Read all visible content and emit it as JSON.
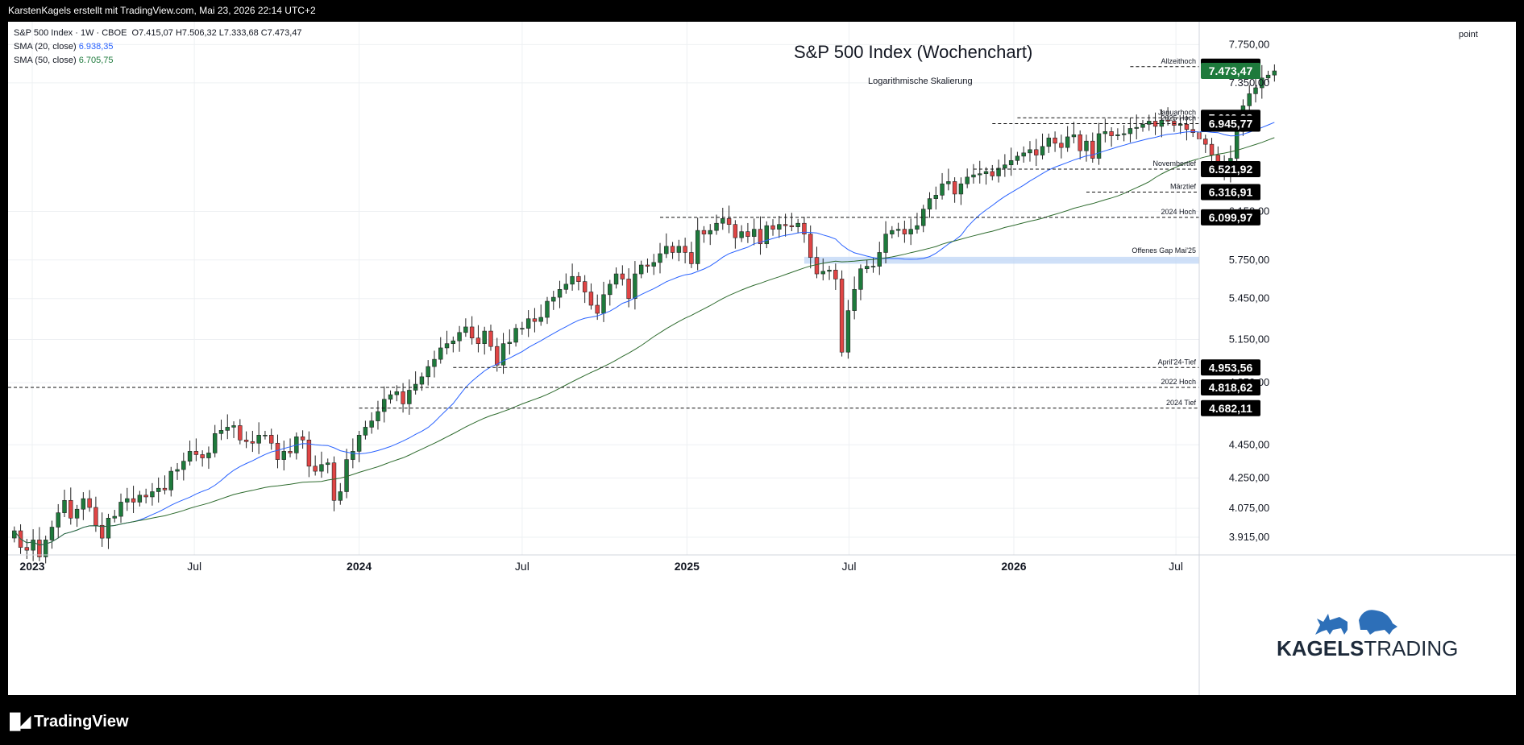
{
  "topbar": {
    "text": "KarstenKagels erstellt mit TradingView.com, Mai 23, 2026 22:14 UTC+2"
  },
  "legend": {
    "symbol_line": "S&P 500 Index · 1W · CBOE",
    "ohlc": "O7.415,07  H7.506,32  L7.333,68  C7.473,47",
    "sma20_label": "SMA (20, close)",
    "sma20_value": "6.938,35",
    "sma50_label": "SMA (50, close)",
    "sma50_value": "6.705,75"
  },
  "chart_title": "S&P 500 Index (Wochenchart)",
  "chart_subtitle": "Logarithmische Skalierung",
  "unit_label": "point",
  "footer": {
    "logo": "TradingView"
  },
  "branding": {
    "word1": "KAGELS",
    "word2": "TRADING"
  },
  "colors": {
    "up": "#1e7a3c",
    "down": "#e04545",
    "sma20": "#2962ff",
    "sma50": "#2e6b2e",
    "gap": "#bbd3f5"
  },
  "chart_data": {
    "type": "candlestick",
    "title": "S&P 500 Index (Wochenchart)",
    "subtitle": "Logarithmische Skalierung",
    "y_scale": "log",
    "x_range": [
      "2022-12-05",
      "2026-07-27"
    ],
    "y_range": [
      3820,
      8000
    ],
    "x_labels": [
      {
        "text": "2023",
        "date": "2023-01-01",
        "bold": true
      },
      {
        "text": "Jul",
        "date": "2023-07-01",
        "bold": false
      },
      {
        "text": "2024",
        "date": "2024-01-01",
        "bold": true
      },
      {
        "text": "Jul",
        "date": "2024-07-01",
        "bold": false
      },
      {
        "text": "2025",
        "date": "2025-01-01",
        "bold": true
      },
      {
        "text": "Jul",
        "date": "2025-07-01",
        "bold": false
      },
      {
        "text": "2026",
        "date": "2026-01-01",
        "bold": true
      },
      {
        "text": "Jul",
        "date": "2026-07-01",
        "bold": false
      }
    ],
    "y_ticks": [
      {
        "v": 7750,
        "t": "7.750,00"
      },
      {
        "v": 7350,
        "t": "7.350,00"
      },
      {
        "v": 6150,
        "t": "6.150,00"
      },
      {
        "v": 5750,
        "t": "5.750,00"
      },
      {
        "v": 5450,
        "t": "5.450,00"
      },
      {
        "v": 5150,
        "t": "5.150,00"
      },
      {
        "v": 4850,
        "t": "4.850,00"
      },
      {
        "v": 4450,
        "t": "4.450,00"
      },
      {
        "v": 4250,
        "t": "4.250,00"
      },
      {
        "v": 4075,
        "t": "4.075,00"
      },
      {
        "v": 3915,
        "t": "3.915,00"
      }
    ],
    "price_boxes": [
      {
        "v": 7517.12,
        "t": "7.517,12",
        "bg": "#000000"
      },
      {
        "v": 7473.47,
        "t": "7.473,47",
        "bg": "#1e7a3c"
      },
      {
        "v": 7002.28,
        "t": "7.002,28",
        "bg": "#000000"
      },
      {
        "v": 6945.77,
        "t": "6.945,77",
        "bg": "#000000"
      },
      {
        "v": 6521.92,
        "t": "6.521,92",
        "bg": "#000000"
      },
      {
        "v": 6316.91,
        "t": "6.316,91",
        "bg": "#000000"
      },
      {
        "v": 6099.97,
        "t": "6.099,97",
        "bg": "#000000"
      },
      {
        "v": 4953.56,
        "t": "4.953,56",
        "bg": "#000000"
      },
      {
        "v": 4818.62,
        "t": "4.818,62",
        "bg": "#000000"
      },
      {
        "v": 4682.11,
        "t": "4.682,11",
        "bg": "#000000"
      }
    ],
    "levels": [
      {
        "name": "Allzeithoch",
        "price": 7517.12,
        "start": "2026-05-11"
      },
      {
        "name": "Januarhoch",
        "price": 7002.28,
        "start": "2026-01-05"
      },
      {
        "name": "2025 Hoch",
        "price": 6945.77,
        "start": "2025-12-08"
      },
      {
        "name": "Novembertief",
        "price": 6521.92,
        "start": "2025-11-17"
      },
      {
        "name": "Märztief",
        "price": 6316.91,
        "start": "2026-03-23"
      },
      {
        "name": "2024 Hoch",
        "price": 6099.97,
        "start": "2024-12-02"
      },
      {
        "name": "April'24-Tief",
        "price": 4953.56,
        "start": "2024-04-15"
      },
      {
        "name": "2022 Hoch",
        "price": 4818.62,
        "start": "2022-12-05"
      },
      {
        "name": "2024 Tief",
        "price": 4682.11,
        "start": "2024-01-01"
      }
    ],
    "gap_zone": {
      "name": "Offenes Gap Mai'25",
      "low": 5720,
      "high": 5775,
      "start": "2025-05-12"
    },
    "first_week": "2022-12-12",
    "weekly_closes": [
      3950,
      3860,
      3845,
      3900,
      3810,
      3900,
      3970,
      4050,
      4120,
      4020,
      4070,
      4130,
      4080,
      3980,
      3910,
      4020,
      4030,
      4110,
      4130,
      4110,
      4150,
      4140,
      4170,
      4190,
      4180,
      4290,
      4300,
      4350,
      4410,
      4390,
      4370,
      4400,
      4520,
      4540,
      4560,
      4570,
      4480,
      4470,
      4460,
      4510,
      4510,
      4460,
      4360,
      4410,
      4400,
      4500,
      4480,
      4320,
      4290,
      4330,
      4340,
      4120,
      4170,
      4360,
      4410,
      4510,
      4560,
      4600,
      4660,
      4740,
      4770,
      4790,
      4710,
      4800,
      4840,
      4890,
      4960,
      5010,
      5090,
      5120,
      5140,
      5200,
      5240,
      5160,
      5120,
      5210,
      5100,
      4970,
      5120,
      5130,
      5230,
      5230,
      5300,
      5280,
      5310,
      5430,
      5460,
      5520,
      5560,
      5620,
      5580,
      5500,
      5400,
      5340,
      5480,
      5560,
      5640,
      5600,
      5450,
      5640,
      5710,
      5700,
      5730,
      5800,
      5860,
      5810,
      5860,
      5810,
      5720,
      5990,
      5960,
      5990,
      6050,
      6090,
      6040,
      5930,
      5980,
      5940,
      6000,
      5880,
      6030,
      6000,
      6040,
      6030,
      6020,
      6050,
      5960,
      5770,
      5640,
      5660,
      5670,
      5600,
      5060,
      5360,
      5520,
      5680,
      5700,
      5700,
      5810,
      5960,
      5990,
      6000,
      5960,
      6000,
      6030,
      6170,
      6260,
      6290,
      6390,
      6410,
      6300,
      6390,
      6450,
      6470,
      6480,
      6500,
      6460,
      6530,
      6560,
      6600,
      6640,
      6670,
      6700,
      6650,
      6730,
      6810,
      6760,
      6720,
      6820,
      6840,
      6690,
      6780,
      6620,
      6850,
      6870,
      6830,
      6840,
      6850,
      6900,
      6910,
      6940,
      6970,
      6920,
      6980,
      6970,
      6930,
      6940,
      6890,
      6860,
      6800,
      6750,
      6650,
      6550,
      6480,
      6620,
      6870,
      7120,
      7240,
      7300,
      7400,
      7430,
      7473
    ]
  }
}
